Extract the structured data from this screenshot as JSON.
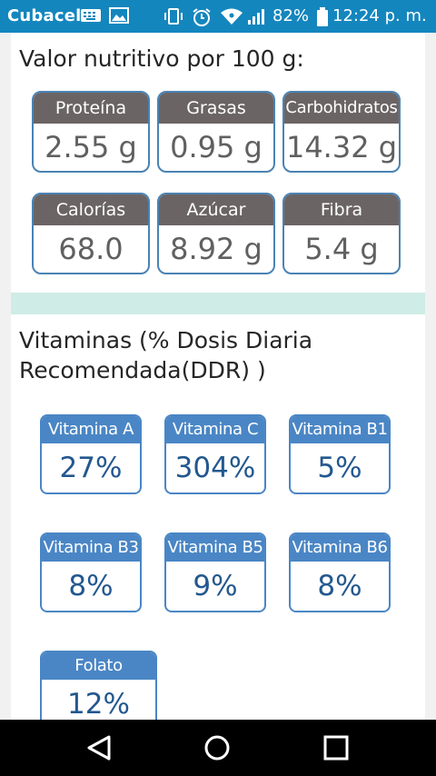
{
  "status_bar": {
    "carrier": "Cubacel",
    "battery": "82%",
    "time": "12:24 p. m."
  },
  "nutrition": {
    "title": "Valor nutritivo por 100 g:",
    "items": [
      {
        "label": "Proteína",
        "value": "2.55 g"
      },
      {
        "label": "Grasas",
        "value": "0.95 g"
      },
      {
        "label": "Carbohidratos",
        "value": "14.32 g"
      },
      {
        "label": "Calorías",
        "value": "68.0"
      },
      {
        "label": "Azúcar",
        "value": "8.92 g"
      },
      {
        "label": "Fibra",
        "value": "5.4 g"
      }
    ]
  },
  "vitamins": {
    "title_line1": "Vitaminas (% Dosis Diaria",
    "title_line2": "Recomendada(DDR) )",
    "items": [
      {
        "label": "Vitamina A",
        "value": "27%"
      },
      {
        "label": "Vitamina C",
        "value": "304%"
      },
      {
        "label": "Vitamina B1",
        "value": "5%"
      },
      {
        "label": "Vitamina B3",
        "value": "8%"
      },
      {
        "label": "Vitamina B5",
        "value": "9%"
      },
      {
        "label": "Vitamina B6",
        "value": "8%"
      },
      {
        "label": "Folato",
        "value": "12%"
      }
    ]
  },
  "colors": {
    "status_bar": "#1486be",
    "nutrient_header": "#6b6464",
    "vitamin_header": "#4a86c5",
    "divider": "#cfece6"
  }
}
